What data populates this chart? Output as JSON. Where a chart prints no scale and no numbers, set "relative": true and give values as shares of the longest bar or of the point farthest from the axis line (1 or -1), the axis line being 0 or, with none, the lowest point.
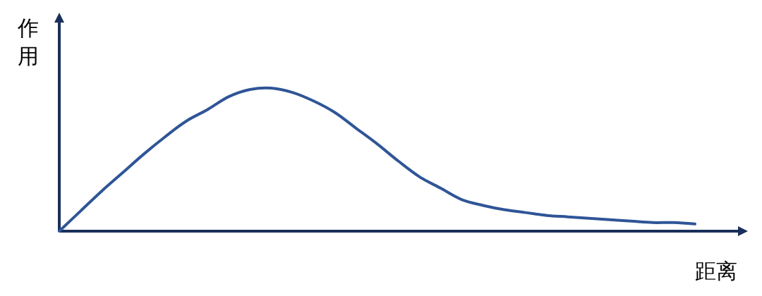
{
  "chart_data": {
    "type": "line",
    "relative": true,
    "xlabel": "距离",
    "ylabel": "作用",
    "color": "#2f5597",
    "categories": [
      null,
      null,
      null,
      null,
      null,
      null,
      null,
      null,
      null,
      null,
      null,
      null,
      null,
      null,
      null,
      null,
      null,
      null,
      null,
      null,
      null,
      null,
      null,
      null,
      null,
      null,
      null,
      null,
      null,
      null,
      null
    ],
    "values": [
      0,
      0.14,
      0.28,
      0.41,
      0.54,
      0.66,
      0.77,
      0.85,
      0.94,
      0.99,
      1.0,
      0.97,
      0.91,
      0.83,
      0.72,
      0.61,
      0.49,
      0.38,
      0.3,
      0.22,
      0.18,
      0.15,
      0.13,
      0.11,
      0.1,
      0.09,
      0.08,
      0.07,
      0.06,
      0.06,
      0.05
    ]
  }
}
